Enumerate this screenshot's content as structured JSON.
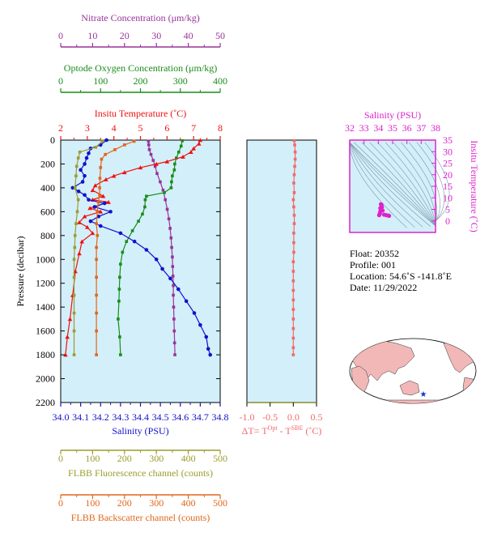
{
  "colors": {
    "nitrate": "#993399",
    "oxygen": "#1a8c1a",
    "temperature": "#ee1111",
    "salinity": "#1111cc",
    "fluorescence": "#9c9c2e",
    "backscatter": "#e0661a",
    "delta_t": "#f06a6a",
    "ts_axis": "#dd22cc",
    "panel_bg": "#d3effa",
    "land": "#f2b8b8",
    "float_marker": "#1133cc"
  },
  "info": {
    "float": "Float:  20352",
    "profile": "Profile:  001",
    "location": "Location:  54.6˚S  -141.8˚E",
    "date": "Date:  11/29/2022"
  },
  "map": {
    "marker": "★"
  },
  "chart_data": [
    {
      "id": "profile",
      "type": "line",
      "ylabel": "Pressure (decibar)",
      "ylim": [
        0,
        2200
      ],
      "y_reversed": true,
      "y_ticks": [
        "0",
        "200",
        "400",
        "600",
        "800",
        "1000",
        "1200",
        "1400",
        "1600",
        "1800",
        "2000",
        "2200"
      ],
      "grid": false,
      "axes": {
        "nitrate": {
          "label": "Nitrate Concentration (μm/kg)",
          "range": [
            0,
            50
          ],
          "ticks": [
            "0",
            "10",
            "20",
            "30",
            "40",
            "50"
          ]
        },
        "oxygen": {
          "label": "Optode Oxygen Concentration (μm/kg)",
          "range": [
            0,
            400
          ],
          "ticks": [
            "0",
            "100",
            "200",
            "300",
            "400"
          ]
        },
        "temperature": {
          "label": "Insitu Temperature (˚C)",
          "range": [
            2,
            8
          ],
          "ticks": [
            "2",
            "3",
            "4",
            "5",
            "6",
            "7",
            "8"
          ]
        },
        "salinity": {
          "label": "Salinity (PSU)",
          "range": [
            34.0,
            34.8
          ],
          "ticks": [
            "34.0",
            "34.1",
            "34.2",
            "34.3",
            "34.4",
            "34.5",
            "34.6",
            "34.7",
            "34.8"
          ]
        },
        "fluorescence": {
          "label": "FLBB Fluorescence channel (counts)",
          "range": [
            0,
            500
          ],
          "ticks": [
            "0",
            "100",
            "200",
            "300",
            "400",
            "500"
          ]
        },
        "backscatter": {
          "label": "FLBB Backscatter channel (counts)",
          "range": [
            0,
            500
          ],
          "ticks": [
            "0",
            "100",
            "200",
            "300",
            "400",
            "500"
          ]
        }
      },
      "series": [
        {
          "axis": "nitrate",
          "marker": "square",
          "points": [
            [
              27.5,
              10
            ],
            [
              27.6,
              40
            ],
            [
              27.8,
              80
            ],
            [
              28.3,
              120
            ],
            [
              29.0,
              170
            ],
            [
              29.6,
              220
            ],
            [
              30.2,
              280
            ],
            [
              31.2,
              350
            ],
            [
              32.1,
              420
            ],
            [
              32.8,
              500
            ],
            [
              33.4,
              580
            ],
            [
              33.9,
              660
            ],
            [
              34.3,
              740
            ],
            [
              34.6,
              820
            ],
            [
              34.8,
              900
            ],
            [
              35.0,
              980
            ],
            [
              35.1,
              1060
            ],
            [
              35.2,
              1140
            ],
            [
              35.3,
              1220
            ],
            [
              35.3,
              1300
            ],
            [
              35.4,
              1400
            ],
            [
              35.5,
              1500
            ],
            [
              35.6,
              1600
            ],
            [
              35.7,
              1700
            ],
            [
              35.8,
              1800
            ]
          ]
        },
        {
          "axis": "oxygen",
          "marker": "square",
          "points": [
            [
              305,
              5
            ],
            [
              302,
              50
            ],
            [
              296,
              100
            ],
            [
              290,
              150
            ],
            [
              286,
              200
            ],
            [
              285,
              250
            ],
            [
              280,
              300
            ],
            [
              278,
              350
            ],
            [
              277,
              400
            ],
            [
              260,
              440
            ],
            [
              215,
              470
            ],
            [
              212,
              500
            ],
            [
              211,
              560
            ],
            [
              205,
              620
            ],
            [
              195,
              680
            ],
            [
              180,
              760
            ],
            [
              165,
              850
            ],
            [
              155,
              940
            ],
            [
              150,
              1040
            ],
            [
              148,
              1150
            ],
            [
              147,
              1250
            ],
            [
              146,
              1350
            ],
            [
              144,
              1500
            ],
            [
              148,
              1650
            ],
            [
              150,
              1800
            ]
          ]
        },
        {
          "axis": "temperature",
          "marker": "triangle",
          "points": [
            [
              7.25,
              0
            ],
            [
              7.2,
              30
            ],
            [
              7.0,
              70
            ],
            [
              6.9,
              100
            ],
            [
              6.6,
              140
            ],
            [
              6.0,
              180
            ],
            [
              5.6,
              200
            ],
            [
              5.0,
              230
            ],
            [
              4.4,
              270
            ],
            [
              4.0,
              300
            ],
            [
              3.7,
              330
            ],
            [
              3.3,
              380
            ],
            [
              3.2,
              420
            ],
            [
              3.6,
              470
            ],
            [
              3.2,
              500
            ],
            [
              3.8,
              520
            ],
            [
              3.1,
              570
            ],
            [
              3.5,
              600
            ],
            [
              2.9,
              640
            ],
            [
              2.7,
              690
            ],
            [
              3.0,
              730
            ],
            [
              3.2,
              780
            ],
            [
              2.8,
              850
            ],
            [
              2.7,
              950
            ],
            [
              2.55,
              1100
            ],
            [
              2.45,
              1300
            ],
            [
              2.35,
              1500
            ],
            [
              2.25,
              1650
            ],
            [
              2.18,
              1800
            ]
          ]
        },
        {
          "axis": "salinity",
          "marker": "circle",
          "points": [
            [
              34.23,
              0
            ],
            [
              34.2,
              40
            ],
            [
              34.15,
              70
            ],
            [
              34.14,
              110
            ],
            [
              34.13,
              150
            ],
            [
              34.12,
              200
            ],
            [
              34.1,
              250
            ],
            [
              34.12,
              300
            ],
            [
              34.11,
              350
            ],
            [
              34.06,
              400
            ],
            [
              34.09,
              430
            ],
            [
              34.12,
              460
            ],
            [
              34.14,
              500
            ],
            [
              34.22,
              530
            ],
            [
              34.17,
              560
            ],
            [
              34.25,
              600
            ],
            [
              34.19,
              640
            ],
            [
              34.15,
              680
            ],
            [
              34.2,
              720
            ],
            [
              34.3,
              780
            ],
            [
              34.37,
              850
            ],
            [
              34.43,
              920
            ],
            [
              34.48,
              1000
            ],
            [
              34.51,
              1080
            ],
            [
              34.55,
              1160
            ],
            [
              34.59,
              1250
            ],
            [
              34.63,
              1350
            ],
            [
              34.67,
              1450
            ],
            [
              34.7,
              1550
            ],
            [
              34.73,
              1650
            ],
            [
              34.74,
              1750
            ],
            [
              34.75,
              1800
            ]
          ]
        },
        {
          "axis": "fluorescence",
          "marker": "square",
          "points": [
            [
              130,
              10
            ],
            [
              110,
              60
            ],
            [
              60,
              100
            ],
            [
              55,
              150
            ],
            [
              50,
              220
            ],
            [
              48,
              300
            ],
            [
              45,
              400
            ],
            [
              55,
              500
            ],
            [
              52,
              600
            ],
            [
              48,
              700
            ],
            [
              45,
              800
            ],
            [
              44,
              900
            ],
            [
              42,
              1000
            ],
            [
              42,
              1150
            ],
            [
              42,
              1300
            ],
            [
              42,
              1450
            ],
            [
              42,
              1600
            ],
            [
              42,
              1800
            ]
          ]
        },
        {
          "axis": "backscatter",
          "marker": "square",
          "points": [
            [
              230,
              10
            ],
            [
              200,
              40
            ],
            [
              170,
              80
            ],
            [
              140,
              120
            ],
            [
              128,
              160
            ],
            [
              125,
              230
            ],
            [
              123,
              320
            ],
            [
              122,
              400
            ],
            [
              122,
              460
            ],
            [
              118,
              520
            ],
            [
              115,
              600
            ],
            [
              112,
              700
            ],
            [
              115,
              800
            ],
            [
              112,
              900
            ],
            [
              112,
              1000
            ],
            [
              112,
              1150
            ],
            [
              112,
              1300
            ],
            [
              112,
              1450
            ],
            [
              112,
              1600
            ],
            [
              112,
              1800
            ]
          ]
        }
      ]
    },
    {
      "id": "delta_t",
      "type": "line",
      "xlabel": "ΔT= T",
      "xlabel_sup1": "Opt",
      "xlabel_mid": " - T",
      "xlabel_sup2": "SBE",
      "xlabel_tail": " (˚C)",
      "xlim": [
        -1.0,
        0.5
      ],
      "x_ticks": [
        "-1.0",
        "-0.5",
        "0.0",
        "0.5"
      ],
      "ylim": [
        0,
        2200
      ],
      "series": [
        {
          "marker": "square",
          "values": [
            [
              0.02,
              5
            ],
            [
              0.03,
              40
            ],
            [
              0.04,
              100
            ],
            [
              0.04,
              160
            ],
            [
              0.03,
              220
            ],
            [
              0.02,
              290
            ],
            [
              0.01,
              360
            ],
            [
              0.02,
              440
            ],
            [
              0.0,
              500
            ],
            [
              0.01,
              560
            ],
            [
              0.02,
              630
            ],
            [
              0.02,
              700
            ],
            [
              0.01,
              780
            ],
            [
              0.01,
              860
            ],
            [
              0.01,
              940
            ],
            [
              0.0,
              1020
            ],
            [
              0.0,
              1100
            ],
            [
              0.0,
              1180
            ],
            [
              0.0,
              1260
            ],
            [
              0.0,
              1340
            ],
            [
              0.0,
              1420
            ],
            [
              0.0,
              1500
            ],
            [
              0.0,
              1580
            ],
            [
              0.0,
              1660
            ],
            [
              0.0,
              1740
            ],
            [
              0.0,
              1800
            ]
          ]
        }
      ]
    },
    {
      "id": "ts",
      "type": "scatter",
      "xlabel": "Salinity (PSU)",
      "ylabel": "Insitu Temperature (˚C)",
      "xlim": [
        32,
        38
      ],
      "ylim": [
        -5,
        35
      ],
      "x_ticks": [
        "32",
        "33",
        "34",
        "35",
        "36",
        "37",
        "38"
      ],
      "y_ticks": [
        "0",
        "5",
        "10",
        "15",
        "20",
        "25",
        "30",
        "35"
      ],
      "values": [
        [
          34.06,
          2.5
        ],
        [
          34.1,
          3.0
        ],
        [
          34.12,
          3.6
        ],
        [
          34.15,
          4.2
        ],
        [
          34.2,
          5.0
        ],
        [
          34.25,
          6.0
        ],
        [
          34.22,
          7.0
        ],
        [
          34.18,
          7.2
        ],
        [
          34.4,
          2.7
        ],
        [
          34.55,
          2.5
        ],
        [
          34.7,
          2.3
        ],
        [
          34.75,
          2.2
        ],
        [
          34.3,
          4.5
        ],
        [
          34.14,
          5.5
        ]
      ]
    }
  ]
}
